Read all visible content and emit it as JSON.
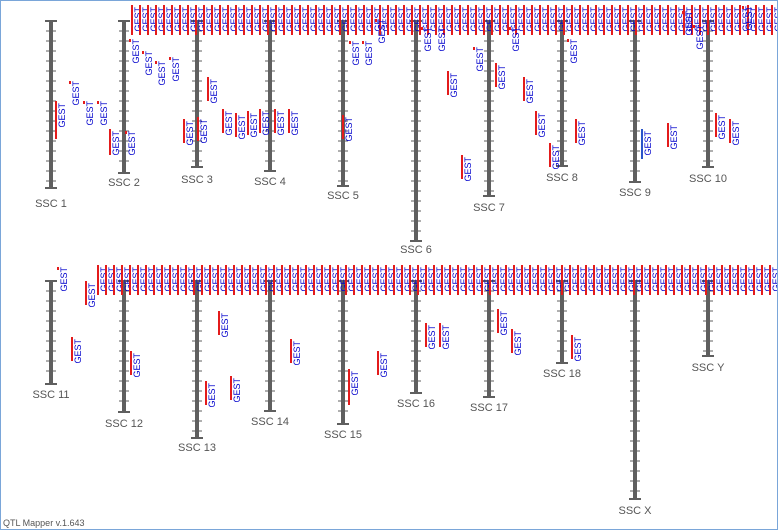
{
  "app": {
    "version_label": "QTL Mapper v.1.643"
  },
  "qtl_label": "GEST",
  "colors": {
    "chromosome": "#5f5f5f",
    "qtl_red": "#e31b1b",
    "qtl_blue": "#2b54c9",
    "label_blue": "#0000cc",
    "frame": "#7aa6d9"
  },
  "chromosomes": [
    {
      "id": "SSC 1"
    },
    {
      "id": "SSC 2"
    },
    {
      "id": "SSC 3"
    },
    {
      "id": "SSC 4"
    },
    {
      "id": "SSC 5"
    },
    {
      "id": "SSC 6"
    },
    {
      "id": "SSC 7"
    },
    {
      "id": "SSC 8"
    },
    {
      "id": "SSC 9"
    },
    {
      "id": "SSC 10"
    },
    {
      "id": "SSC 11"
    },
    {
      "id": "SSC 12"
    },
    {
      "id": "SSC 13"
    },
    {
      "id": "SSC 14"
    },
    {
      "id": "SSC 15"
    },
    {
      "id": "SSC 16"
    },
    {
      "id": "SSC 17"
    },
    {
      "id": "SSC 18"
    },
    {
      "id": "SSC X"
    },
    {
      "id": "SSC Y"
    }
  ]
}
